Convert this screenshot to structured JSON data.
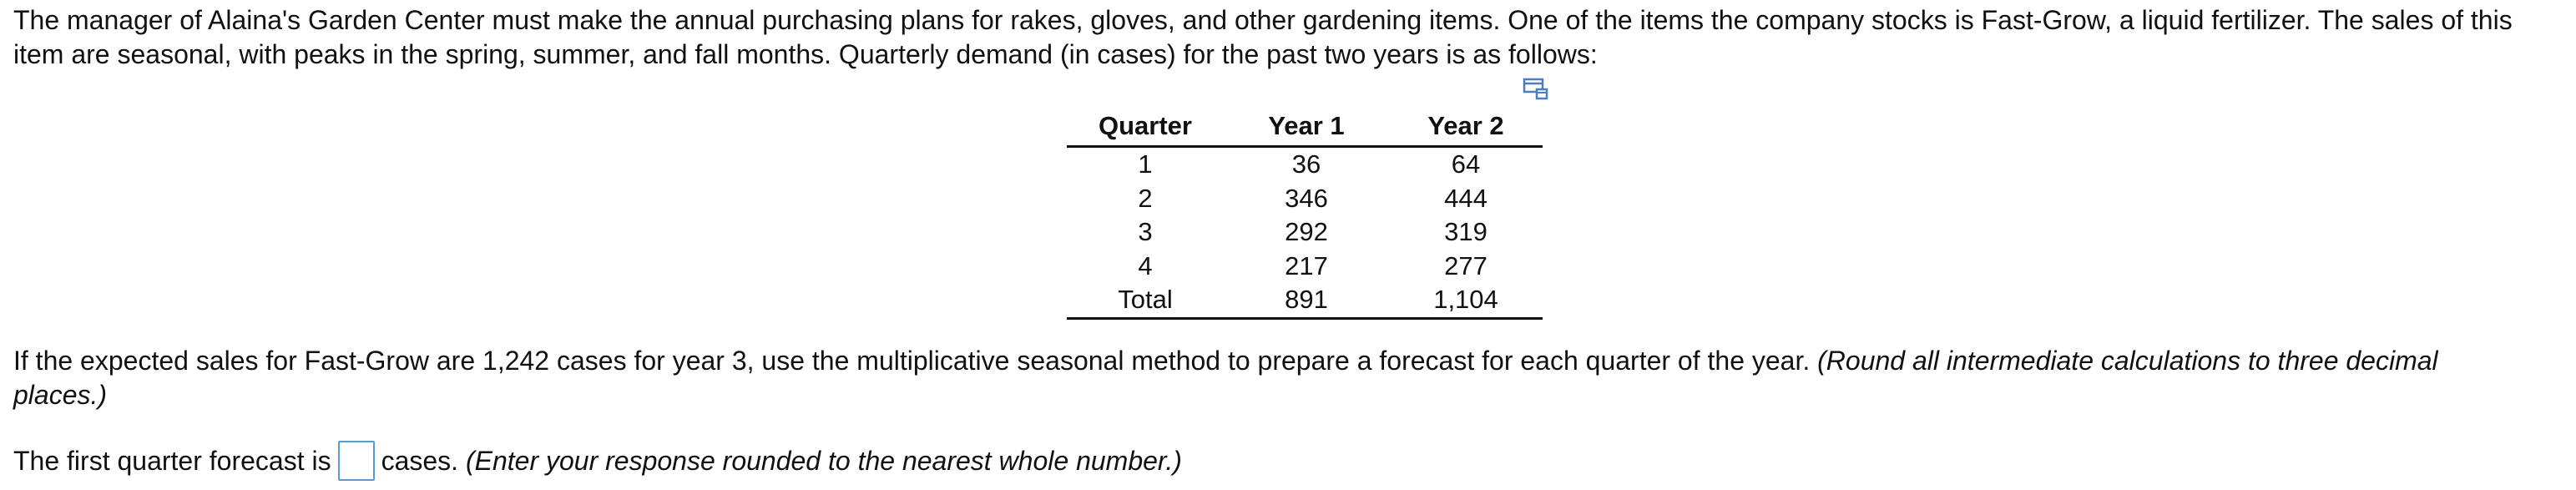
{
  "problem": {
    "intro_line_1": "The manager of Alaina's Garden Center must make the annual purchasing plans for rakes, gloves, and other gardening items. One of the items the company stocks is Fast-Grow, a liquid fertilizer. The sales of this",
    "intro_line_2": "item are seasonal, with peaks in the spring, summer, and fall months. Quarterly demand (in cases) for the past two years is as follows:",
    "question_line_1_main": "If the expected sales for Fast-Grow are 1,242 cases for year 3, use the multiplicative seasonal method to prepare a forecast for each quarter of the year. ",
    "question_line_1_italic": "(Round all intermediate calculations to three decimal",
    "question_line_2_italic": "places.)"
  },
  "table": {
    "headers": {
      "quarter": "Quarter",
      "year1": "Year 1",
      "year2": "Year 2"
    },
    "rows": [
      {
        "quarter": "1",
        "year1": "36",
        "year2": "64"
      },
      {
        "quarter": "2",
        "year1": "346",
        "year2": "444"
      },
      {
        "quarter": "3",
        "year1": "292",
        "year2": "319"
      },
      {
        "quarter": "4",
        "year1": "217",
        "year2": "277"
      }
    ],
    "total": {
      "quarter": "Total",
      "year1": "891",
      "year2": "1,104"
    },
    "icon": "table-view-icon"
  },
  "answer": {
    "prefix": "The first quarter forecast is",
    "value": "",
    "suffix": "cases. ",
    "suffix_italic": "(Enter your response rounded to the nearest whole number.)"
  },
  "colors": {
    "text": "#111111",
    "input_border": "#5b9bd5",
    "icon_blue": "#4a7fc1"
  }
}
